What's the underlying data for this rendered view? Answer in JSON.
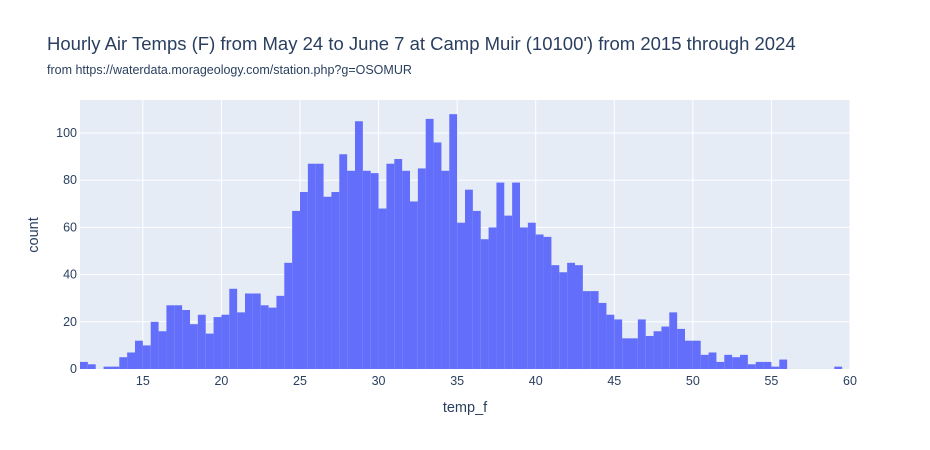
{
  "chart_data": {
    "type": "bar",
    "title": "Hourly Air Temps (F) from May 24 to June 7 at Camp Muir (10100') from 2015 through 2024",
    "subtitle": "from https://waterdata.morageology.com/station.php?g=OSOMUR",
    "xlabel": "temp_f",
    "ylabel": "count",
    "xlim": [
      11,
      60
    ],
    "ylim": [
      0,
      114
    ],
    "xticks": [
      "15",
      "20",
      "25",
      "30",
      "35",
      "40",
      "45",
      "50",
      "55",
      "60"
    ],
    "yticks": [
      "0",
      "20",
      "40",
      "60",
      "80",
      "100"
    ],
    "grid": true,
    "bin_start": 11,
    "bin_width": 0.5,
    "values": [
      3,
      2,
      0,
      1,
      1,
      5,
      7,
      12,
      10,
      20,
      16,
      27,
      27,
      25,
      19,
      23,
      15,
      22,
      23,
      34,
      24,
      32,
      32,
      27,
      26,
      31,
      45,
      67,
      75,
      87,
      87,
      73,
      75,
      91,
      84,
      105,
      84,
      83,
      68,
      87,
      89,
      84,
      71,
      85,
      106,
      96,
      84,
      108,
      62,
      76,
      67,
      55,
      60,
      79,
      65,
      79,
      60,
      62,
      57,
      56,
      44,
      41,
      45,
      44,
      33,
      33,
      28,
      23,
      21,
      13,
      13,
      21,
      14,
      16,
      18,
      24,
      17,
      12,
      12,
      6,
      7,
      3,
      6,
      5,
      6,
      2,
      3,
      3,
      1,
      4,
      0,
      0,
      0,
      0,
      0,
      0,
      1
    ]
  },
  "colors": {
    "bar": "#636efa",
    "plot_bg": "#e5ecf6",
    "grid": "#ffffff",
    "text": "#2a3f5f"
  }
}
